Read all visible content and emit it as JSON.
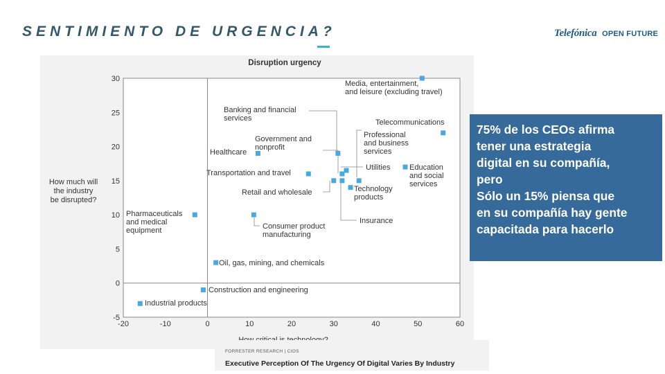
{
  "slide": {
    "title": "SENTIMIENTO DE URGENCIA?",
    "title_underline_color": "#38b6c9",
    "title_color": "#33576b"
  },
  "logo": {
    "brand": "Telefónica",
    "sub": "OPEN FUTURE",
    "color": "#1f5b84"
  },
  "callout": {
    "background": "#356a9a",
    "lines": [
      "75% de los CEOs afirma",
      "tener una estrategia",
      "digital en su compañía,",
      "pero",
      "Sólo un 15% piensa que",
      "en su compañía hay gente",
      "capacitada para hacerlo"
    ]
  },
  "footer": {
    "source": "FORRESTER RESEARCH | CIOS",
    "caption": "Executive Perception Of The Urgency Of Digital Varies By Industry"
  },
  "chart_data": {
    "type": "scatter",
    "title": "Disruption urgency",
    "xlabel": "How critical is technology?",
    "ylabel": [
      "How much will",
      "the industry",
      "be disrupted?"
    ],
    "xlim": [
      -20,
      60
    ],
    "ylim": [
      -5,
      30
    ],
    "xticks": [
      -20,
      -10,
      0,
      10,
      20,
      30,
      40,
      50,
      60
    ],
    "yticks": [
      -5,
      0,
      5,
      10,
      15,
      20,
      25,
      30
    ],
    "grid": false,
    "marker_color": "#4aa8e0",
    "points": [
      {
        "x": 51,
        "y": 30,
        "label": [
          "Media, entertainment,",
          "and leisure (excluding travel)"
        ]
      },
      {
        "x": 56,
        "y": 22,
        "label": [
          "Telecommunications"
        ]
      },
      {
        "x": 31,
        "y": 19,
        "label": [
          "Banking and financial",
          "services"
        ]
      },
      {
        "x": 12,
        "y": 19,
        "label": [
          "Healthcare"
        ]
      },
      {
        "x": 32,
        "y": 16,
        "label": [
          "Government and",
          "nonprofit"
        ]
      },
      {
        "x": 36,
        "y": 15,
        "label": [
          "Professional",
          "and business",
          "services"
        ]
      },
      {
        "x": 47,
        "y": 17,
        "label": [
          "Education",
          "and social",
          "services"
        ]
      },
      {
        "x": 24,
        "y": 16,
        "label": [
          "Transportation and travel"
        ]
      },
      {
        "x": 33,
        "y": 16.5,
        "label": [
          "Utilities"
        ]
      },
      {
        "x": 30,
        "y": 15,
        "label": [
          "Retail and wholesale"
        ]
      },
      {
        "x": 34,
        "y": 14,
        "label": [
          "Technology",
          "products"
        ]
      },
      {
        "x": 32,
        "y": 15,
        "label": [
          "Insurance"
        ]
      },
      {
        "x": -3,
        "y": 10,
        "label": [
          "Pharmaceuticals",
          "and medical",
          "equipment"
        ]
      },
      {
        "x": 11,
        "y": 10,
        "label": [
          "Consumer product",
          "manufacturing"
        ]
      },
      {
        "x": 2,
        "y": 3,
        "label": [
          "Oil, gas, mining, and chemicals"
        ]
      },
      {
        "x": -1,
        "y": -1,
        "label": [
          "Construction and engineering"
        ]
      },
      {
        "x": -16,
        "y": -3,
        "label": [
          "Industrial products"
        ]
      }
    ]
  }
}
